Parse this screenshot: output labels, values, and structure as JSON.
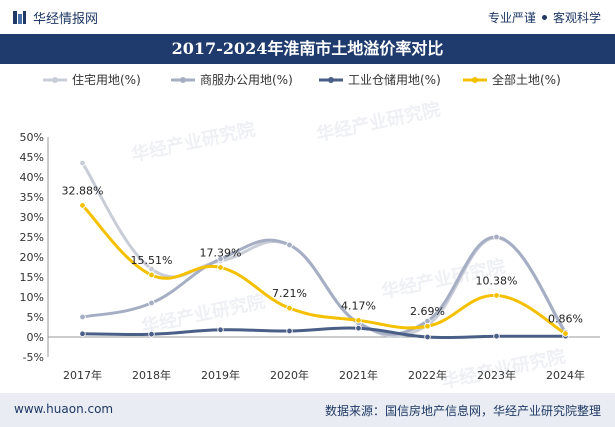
{
  "header": {
    "logo_text": "华经情报网",
    "slogan_left": "专业严谨",
    "slogan_right": "客观科学"
  },
  "chart_data": {
    "type": "line",
    "title": "2017-2024年淮南市土地溢价率对比",
    "categories": [
      "2017年",
      "2018年",
      "2019年",
      "2020年",
      "2021年",
      "2022年",
      "2023年",
      "2024年"
    ],
    "y_ticks": [
      "50%",
      "45%",
      "40%",
      "35%",
      "30%",
      "25%",
      "20%",
      "15%",
      "10%",
      "5%",
      "0%",
      "-5%"
    ],
    "ylim": [
      -5,
      50
    ],
    "y_unit": "%",
    "grid": false,
    "legend_position": "top",
    "series": [
      {
        "name": "住宅用地(%)",
        "color": "#c9cdd8",
        "values": [
          43.5,
          17.0,
          19.0,
          23.0,
          3.5,
          3.0,
          24.8,
          1.0
        ],
        "labels": []
      },
      {
        "name": "商服办公用地(%)",
        "color": "#a6aec4",
        "values": [
          5.0,
          8.5,
          19.5,
          23.0,
          3.5,
          4.0,
          25.0,
          1.2
        ],
        "labels": []
      },
      {
        "name": "工业仓储用地(%)",
        "color": "#4a5f87",
        "values": [
          0.8,
          0.7,
          1.8,
          1.5,
          2.2,
          0.0,
          0.2,
          0.2
        ],
        "labels": []
      },
      {
        "name": "全部土地(%)",
        "color": "#f5c000",
        "values": [
          32.88,
          15.51,
          17.39,
          7.21,
          4.17,
          2.69,
          10.38,
          0.86
        ],
        "labels": [
          "32.88%",
          "15.51%",
          "17.39%",
          "7.21%",
          "4.17%",
          "2.69%",
          "10.38%",
          "0.86%"
        ]
      }
    ]
  },
  "watermark": "华经产业研究院",
  "footer": {
    "site": "www.huaon.com",
    "source": "数据来源：国信房地产信息网，华经产业研究院整理"
  }
}
